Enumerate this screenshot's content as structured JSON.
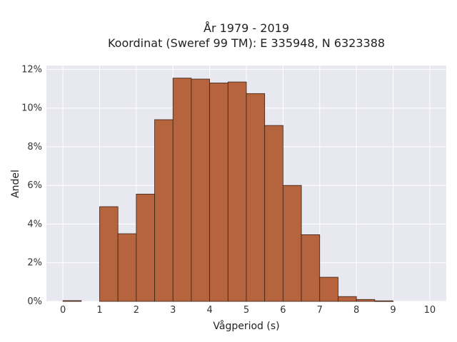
{
  "chart_data": {
    "type": "bar",
    "title": "År 1979 - 2019",
    "subtitle": "Koordinat (Sweref 99 TM): E 335948, N 6323388",
    "xlabel": "Vågperiod (s)",
    "ylabel": "Andel",
    "bin_edges": [
      0,
      0.5,
      1,
      1.5,
      2,
      2.5,
      3,
      3.5,
      4,
      4.5,
      5,
      5.5,
      6,
      6.5,
      7,
      7.5,
      8,
      8.5,
      9,
      9.5,
      10
    ],
    "values": [
      0.04,
      0,
      4.9,
      3.5,
      5.55,
      9.4,
      11.55,
      11.5,
      11.3,
      11.35,
      10.75,
      9.1,
      6.0,
      3.45,
      1.25,
      0.25,
      0.1,
      0.03,
      0,
      0
    ],
    "xlim": [
      -0.45,
      10.45
    ],
    "ylim": [
      0,
      12.2
    ],
    "x_ticks": [
      0,
      1,
      2,
      3,
      4,
      5,
      6,
      7,
      8,
      9,
      10
    ],
    "x_tick_labels": [
      "0",
      "1",
      "2",
      "3",
      "4",
      "5",
      "6",
      "7",
      "8",
      "9",
      "10"
    ],
    "y_ticks": [
      0,
      2,
      4,
      6,
      8,
      10,
      12
    ],
    "y_tick_labels": [
      "0%",
      "2%",
      "4%",
      "6%",
      "8%",
      "10%",
      "12%"
    ],
    "grid": true,
    "colors": {
      "bar": "#b5643e",
      "bar_edge": "#3a2214",
      "plot_bg": "#e8e8f0",
      "grid": "#ffffff"
    }
  }
}
